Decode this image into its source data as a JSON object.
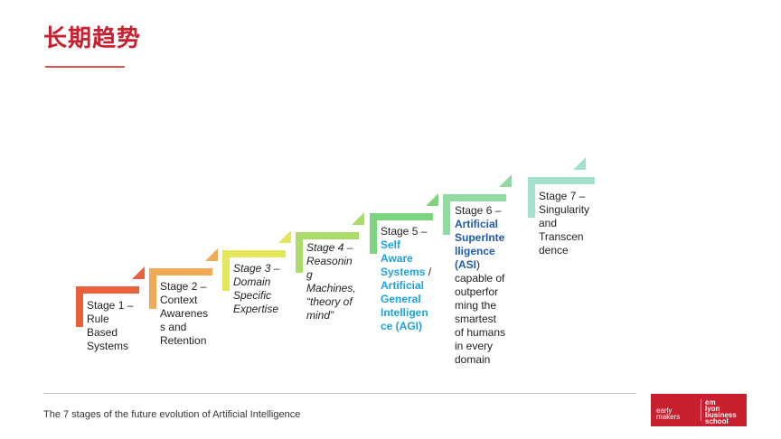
{
  "page": {
    "title": "长期趋势"
  },
  "colors": {
    "title": "#c8202f",
    "stage1": "#e8603c",
    "stage2": "#f0aa57",
    "stage3": "#e4e65a",
    "stage4": "#a9dc6a",
    "stage5": "#7ed37f",
    "stage6": "#8fdb9f",
    "stage7": "#a4e0cf",
    "highlight_light": "#1aa3dd",
    "highlight_dark": "#1f5aa8"
  },
  "stages": [
    {
      "name": "stage-1",
      "lines": [
        "Stage 1 –",
        "Rule",
        "Based",
        "Systems"
      ]
    },
    {
      "name": "stage-2",
      "lines": [
        "Stage 2 –",
        "Context",
        "Awarenes",
        "s and",
        "Retention"
      ]
    },
    {
      "name": "stage-3",
      "lines": [
        "Stage 3 –",
        "Domain",
        "Specific",
        "Expertise"
      ]
    },
    {
      "name": "stage-4",
      "lines": [
        "Stage 4 –",
        "Reasonin",
        "g",
        "Machines,",
        "“theory of",
        "mind”"
      ]
    },
    {
      "name": "stage-5",
      "lines": [
        "Stage 5 –",
        "Self",
        "Aware",
        "Systems",
        " /",
        "Artificial",
        "General",
        "Intelligen",
        "ce (AGI)"
      ]
    },
    {
      "name": "stage-6",
      "lines": [
        "Stage 6 –",
        "Artificial",
        "SuperInte",
        "lligence",
        "(ASI",
        ")",
        "capable of",
        "outperfor",
        "ming the",
        "smartest",
        "of humans",
        "in every",
        "domain"
      ]
    },
    {
      "name": "stage-7",
      "lines": [
        "Stage 7 –",
        "Singularity",
        "and",
        "Transcen",
        "dence"
      ]
    }
  ],
  "footer": {
    "caption": "The 7 stages of the future evolution of Artificial Intelligence",
    "logo_left": [
      "early",
      "makers"
    ],
    "logo_right": [
      "em",
      "lyon",
      "business",
      "school"
    ]
  }
}
